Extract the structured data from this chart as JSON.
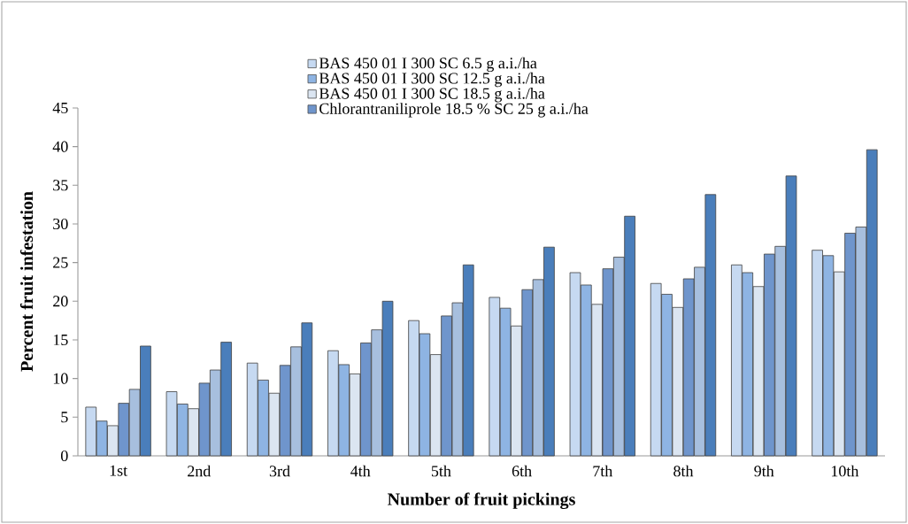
{
  "chart_data": {
    "type": "bar",
    "xlabel": "Number of fruit pickings",
    "ylabel": "Percent fruit infestation",
    "categories": [
      "1st",
      "2nd",
      "3rd",
      "4th",
      "5th",
      "6th",
      "7th",
      "8th",
      "9th",
      "10th"
    ],
    "series": [
      {
        "name": "BAS 450 01 I 300 SC 6.5 g a.i./ha",
        "color": "#c6d9f1",
        "values": [
          6.3,
          8.3,
          12.0,
          13.6,
          17.5,
          20.5,
          23.7,
          22.3,
          24.7,
          26.6
        ]
      },
      {
        "name": "BAS 450 01 I 300 SC 12.5 g a.i./ha",
        "color": "#8eb4e3",
        "values": [
          4.5,
          6.7,
          9.8,
          11.8,
          15.8,
          19.1,
          22.1,
          20.9,
          23.7,
          25.9
        ]
      },
      {
        "name": "BAS 450 01 I 300 SC 18.5 g a.i./ha",
        "color": "#dbe5f1",
        "values": [
          3.9,
          6.1,
          8.1,
          10.6,
          13.1,
          16.8,
          19.6,
          19.2,
          21.9,
          23.8
        ]
      },
      {
        "name": "Chlorantraniliprole 18.5 % SC 25 g a.i./ha",
        "color": "#6f95cc",
        "values": [
          6.8,
          9.4,
          11.7,
          14.6,
          18.1,
          21.5,
          24.2,
          22.9,
          26.1,
          28.8
        ]
      },
      {
        "color": "#a7bfde",
        "values": [
          8.6,
          11.1,
          14.1,
          16.3,
          19.8,
          22.8,
          25.7,
          24.4,
          27.1,
          29.6
        ]
      },
      {
        "color": "#4a7ebb",
        "values": [
          14.2,
          14.7,
          17.2,
          20.0,
          24.7,
          27.0,
          31.0,
          33.8,
          36.2,
          39.6
        ]
      }
    ],
    "ylim": [
      0,
      45
    ],
    "yticks": [
      0,
      5,
      10,
      15,
      20,
      25,
      30,
      35,
      40,
      45
    ],
    "grid": false,
    "legend": "top"
  }
}
